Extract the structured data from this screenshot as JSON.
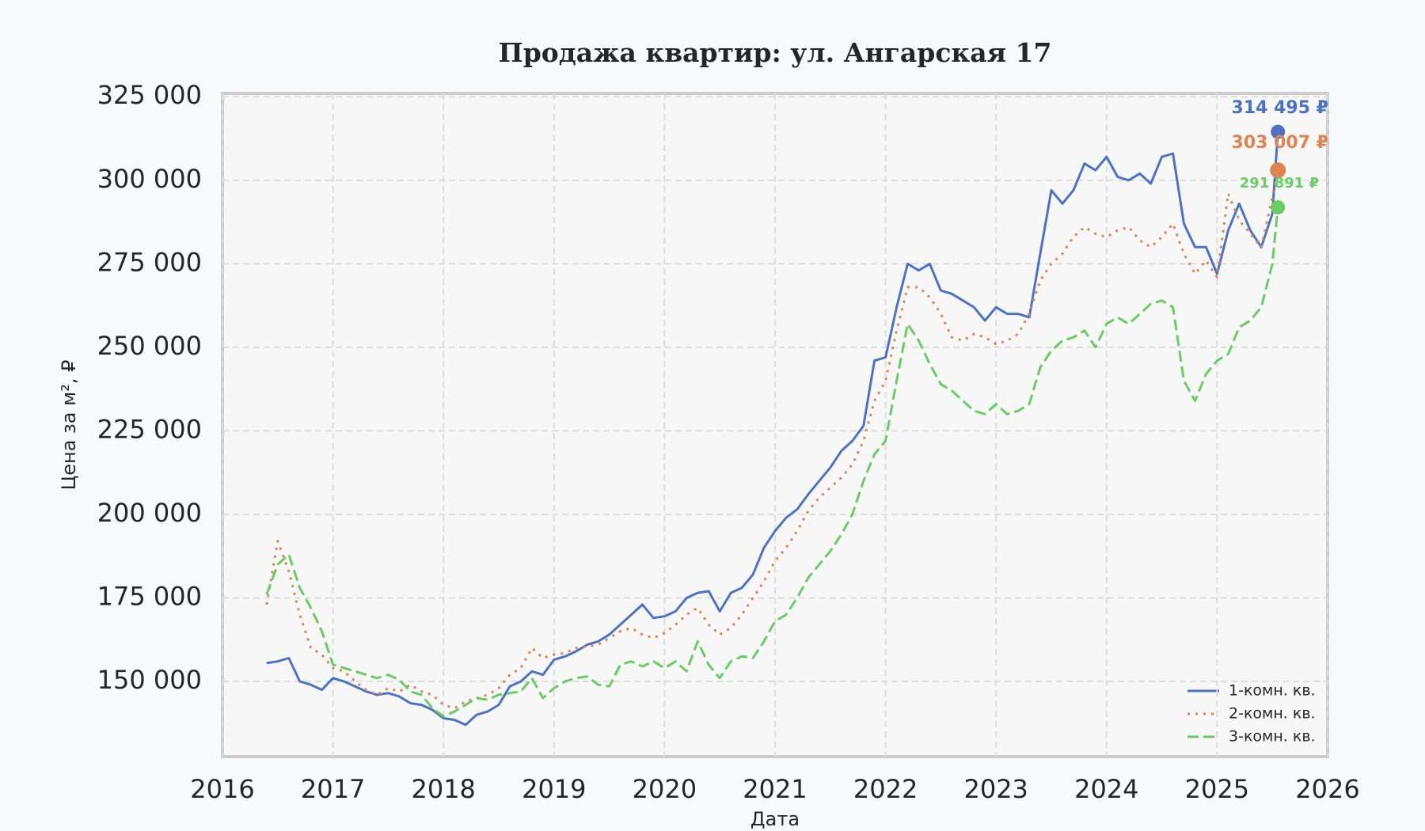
{
  "chart_data": {
    "type": "line",
    "title": "Продажа квартир: ул. Ангарская 17",
    "x_label": "Дата",
    "y_label": "Цена за м², ₽",
    "x": [
      2016.4,
      2016.5,
      2016.6,
      2016.7,
      2016.8,
      2016.9,
      2017.0,
      2017.1,
      2017.2,
      2017.3,
      2017.4,
      2017.5,
      2017.6,
      2017.7,
      2017.8,
      2017.9,
      2018.0,
      2018.1,
      2018.2,
      2018.3,
      2018.4,
      2018.5,
      2018.6,
      2018.7,
      2018.8,
      2018.9,
      2019.0,
      2019.1,
      2019.2,
      2019.3,
      2019.4,
      2019.5,
      2019.6,
      2019.7,
      2019.8,
      2019.9,
      2020.0,
      2020.1,
      2020.2,
      2020.3,
      2020.4,
      2020.5,
      2020.6,
      2020.7,
      2020.8,
      2020.9,
      2021.0,
      2021.1,
      2021.2,
      2021.3,
      2021.4,
      2021.5,
      2021.6,
      2021.7,
      2021.8,
      2021.9,
      2022.0,
      2022.1,
      2022.2,
      2022.3,
      2022.4,
      2022.5,
      2022.6,
      2022.7,
      2022.8,
      2022.9,
      2023.0,
      2023.1,
      2023.2,
      2023.3,
      2023.4,
      2023.5,
      2023.6,
      2023.7,
      2023.8,
      2023.9,
      2024.0,
      2024.1,
      2024.2,
      2024.3,
      2024.4,
      2024.5,
      2024.6,
      2024.7,
      2024.8,
      2024.9,
      2025.0,
      2025.1,
      2025.2,
      2025.3,
      2025.4,
      2025.5,
      2025.55
    ],
    "series": [
      {
        "name": "1-комн. кв.",
        "color": "#4c72c4",
        "style": "solid",
        "values": [
          155500,
          156000,
          157000,
          150000,
          149000,
          147500,
          151000,
          150000,
          148500,
          147000,
          146000,
          146500,
          145500,
          143500,
          143000,
          141500,
          139000,
          138500,
          137000,
          140000,
          141000,
          143000,
          148500,
          150000,
          153000,
          152000,
          156500,
          157500,
          159000,
          161000,
          162000,
          164000,
          167000,
          170000,
          173000,
          169000,
          169500,
          171000,
          175000,
          176500,
          177000,
          171000,
          176500,
          178000,
          182000,
          190000,
          195000,
          199000,
          201500,
          206000,
          210000,
          214000,
          219000,
          222000,
          226500,
          246000,
          247000,
          262000,
          275000,
          273000,
          275000,
          267000,
          266000,
          264000,
          262000,
          258000,
          262000,
          260000,
          260000,
          259000,
          278000,
          297000,
          293000,
          297000,
          305000,
          303000,
          307000,
          301000,
          300000,
          302000,
          299000,
          307000,
          308000,
          287000,
          280000,
          280000,
          272000,
          285000,
          293000,
          285000,
          280000,
          290000,
          314495
        ]
      },
      {
        "name": "2-комн. кв.",
        "color": "#dd8452",
        "style": "dotted",
        "values": [
          173000,
          192000,
          183000,
          170000,
          160000,
          158000,
          154000,
          153000,
          150000,
          147500,
          146000,
          148000,
          147000,
          149000,
          147000,
          146000,
          143000,
          142000,
          144000,
          145000,
          146000,
          148000,
          152000,
          154000,
          160000,
          157000,
          158000,
          158500,
          160000,
          160500,
          161000,
          163000,
          165000,
          166000,
          164000,
          163000,
          164500,
          167000,
          170000,
          172000,
          167000,
          164000,
          166000,
          170000,
          175000,
          180000,
          186000,
          190000,
          195000,
          201000,
          205000,
          208000,
          211000,
          215000,
          222000,
          234000,
          240000,
          255000,
          268000,
          268000,
          265000,
          260000,
          253000,
          252000,
          254000,
          253000,
          251000,
          252000,
          254000,
          260000,
          270000,
          275000,
          278000,
          283000,
          286000,
          284000,
          283000,
          285000,
          286000,
          282000,
          280000,
          283000,
          287000,
          278000,
          272000,
          276000,
          271000,
          296000,
          288000,
          284000,
          280000,
          295000,
          303007
        ]
      },
      {
        "name": "3-комн. кв.",
        "color": "#6acc64",
        "style": "dashed",
        "values": [
          176000,
          185000,
          188000,
          178000,
          172000,
          165000,
          155000,
          154000,
          153000,
          152000,
          151000,
          152000,
          150500,
          147000,
          146000,
          142000,
          139500,
          141000,
          143000,
          145000,
          144500,
          146000,
          146500,
          147000,
          151000,
          145000,
          148000,
          150000,
          151000,
          151500,
          149000,
          148500,
          155000,
          156000,
          154500,
          156000,
          154000,
          156000,
          153000,
          162000,
          155000,
          151000,
          156000,
          157500,
          157000,
          162000,
          168000,
          170000,
          175000,
          181000,
          185000,
          189000,
          194000,
          200000,
          210000,
          218000,
          222000,
          240000,
          257000,
          252000,
          245000,
          239000,
          237000,
          234000,
          231000,
          230000,
          233000,
          230000,
          231000,
          233000,
          244000,
          249000,
          252000,
          253000,
          255000,
          250000,
          257000,
          259000,
          257000,
          260000,
          263000,
          264000,
          262000,
          240000,
          234000,
          242000,
          246000,
          248000,
          256000,
          258000,
          262000,
          275000,
          291891
        ]
      }
    ],
    "annotations": [
      {
        "text": "314 495 ₽",
        "x": 2025.55,
        "y": 314495,
        "color": "#4c72c4"
      },
      {
        "text": "303 007 ₽",
        "x": 2025.55,
        "y": 303007,
        "color": "#dd8452"
      },
      {
        "text": "291 891 ₽",
        "x": 2025.55,
        "y": 291891,
        "color": "#6acc64"
      }
    ],
    "xlim": [
      2016,
      2026
    ],
    "xticks": [
      2016,
      2017,
      2018,
      2019,
      2020,
      2021,
      2022,
      2023,
      2024,
      2025,
      2026
    ],
    "ylim": [
      127500,
      326000
    ],
    "yticks": [
      {
        "value": 150000,
        "label": "150 000"
      },
      {
        "value": 175000,
        "label": "175 000"
      },
      {
        "value": 200000,
        "label": "200 000"
      },
      {
        "value": 225000,
        "label": "225 000"
      },
      {
        "value": 250000,
        "label": "250 000"
      },
      {
        "value": 275000,
        "label": "275 000"
      },
      {
        "value": 300000,
        "label": "300 000"
      },
      {
        "value": 325000,
        "label": "325 000"
      }
    ],
    "grid": true,
    "legend": "lower right"
  }
}
